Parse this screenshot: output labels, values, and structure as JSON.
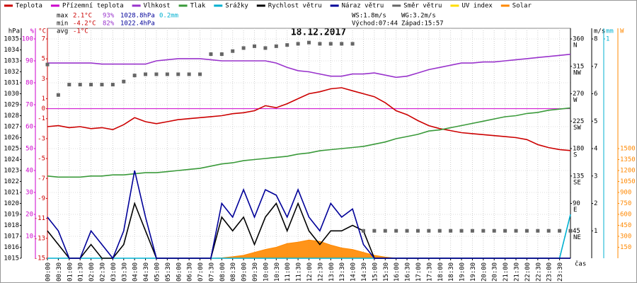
{
  "chart_data": {
    "type": "weather-multi",
    "title": "18.12.2017",
    "x_label": "čas",
    "xlim": [
      0,
      24
    ],
    "grid": true,
    "x": [
      0,
      0.5,
      1,
      1.5,
      2,
      2.5,
      3,
      3.5,
      4,
      4.5,
      5,
      5.5,
      6,
      6.5,
      7,
      7.5,
      8,
      8.5,
      9,
      9.5,
      10,
      10.5,
      11,
      11.5,
      12,
      12.5,
      13,
      13.5,
      14,
      14.5,
      15,
      15.5,
      16,
      16.5,
      17,
      17.5,
      18,
      18.5,
      19,
      19.5,
      20,
      20.5,
      21,
      21.5,
      22,
      22.5,
      23,
      23.5,
      24
    ],
    "xticks": [
      {
        "value": 0,
        "label": "00:00"
      },
      {
        "value": 0.5,
        "label": "00:30"
      },
      {
        "value": 1,
        "label": "01:00"
      },
      {
        "value": 1.5,
        "label": "01:30"
      },
      {
        "value": 2,
        "label": "02:00"
      },
      {
        "value": 2.5,
        "label": "02:30"
      },
      {
        "value": 3,
        "label": "03:00"
      },
      {
        "value": 3.5,
        "label": "03:30"
      },
      {
        "value": 4,
        "label": "04:00"
      },
      {
        "value": 4.5,
        "label": "04:30"
      },
      {
        "value": 5,
        "label": "05:00"
      },
      {
        "value": 5.5,
        "label": "05:30"
      },
      {
        "value": 6,
        "label": "06:00"
      },
      {
        "value": 6.5,
        "label": "06:30"
      },
      {
        "value": 7,
        "label": "07:00"
      },
      {
        "value": 7.5,
        "label": "07:30"
      },
      {
        "value": 8,
        "label": "08:00"
      },
      {
        "value": 8.5,
        "label": "08:30"
      },
      {
        "value": 9,
        "label": "09:00"
      },
      {
        "value": 9.5,
        "label": "09:30"
      },
      {
        "value": 10,
        "label": "10:00"
      },
      {
        "value": 10.5,
        "label": "10:30"
      },
      {
        "value": 11,
        "label": "11:00"
      },
      {
        "value": 11.5,
        "label": "11:30"
      },
      {
        "value": 12,
        "label": "12:00"
      },
      {
        "value": 12.5,
        "label": "12:30"
      },
      {
        "value": 13,
        "label": "13:00"
      },
      {
        "value": 13.5,
        "label": "13:30"
      },
      {
        "value": 14,
        "label": "14:00"
      },
      {
        "value": 14.5,
        "label": "14:30"
      },
      {
        "value": 15,
        "label": "15:00"
      },
      {
        "value": 15.5,
        "label": "15:30"
      },
      {
        "value": 16,
        "label": "16:00"
      },
      {
        "value": 16.5,
        "label": "16:30"
      },
      {
        "value": 17,
        "label": "17:00"
      },
      {
        "value": 17.5,
        "label": "17:30"
      },
      {
        "value": 18,
        "label": "18:00"
      },
      {
        "value": 18.5,
        "label": "18:30"
      },
      {
        "value": 19,
        "label": "19:00"
      },
      {
        "value": 19.5,
        "label": "19:30"
      },
      {
        "value": 20,
        "label": "20:00"
      },
      {
        "value": 20.5,
        "label": "20:30"
      },
      {
        "value": 21,
        "label": "21:00"
      },
      {
        "value": 21.5,
        "label": "21:30"
      },
      {
        "value": 22,
        "label": "22:00"
      },
      {
        "value": 22.5,
        "label": "22:30"
      },
      {
        "value": 23,
        "label": "23:00"
      },
      {
        "value": 23.5,
        "label": "23:30"
      }
    ],
    "axes": [
      {
        "id": "hpa",
        "label": "hPa",
        "side": "left",
        "color": "#000000",
        "lim": [
          1015,
          1035
        ],
        "ticks": [
          1015,
          1016,
          1017,
          1018,
          1019,
          1020,
          1021,
          1022,
          1023,
          1024,
          1025,
          1026,
          1027,
          1028,
          1029,
          1030,
          1031,
          1032,
          1033,
          1034,
          1035
        ]
      },
      {
        "id": "pct",
        "label": "%",
        "side": "left",
        "color": "#cc00cc",
        "lim": [
          0,
          100
        ],
        "ticks": [
          10,
          20,
          30,
          40,
          50,
          60,
          70,
          80,
          90,
          100
        ],
        "grid": true
      },
      {
        "id": "temp",
        "label": "°C",
        "side": "left",
        "color": "#cc0000",
        "lim": [
          -15,
          7
        ],
        "ticks": [
          -15,
          -13,
          -11,
          -9,
          -7,
          -5,
          -3,
          -1,
          0,
          1,
          3,
          5,
          7
        ],
        "zero_line_color": "#cc00cc"
      },
      {
        "id": "dir",
        "label": "",
        "side": "right",
        "color": "#000000",
        "lim": [
          0,
          360
        ],
        "ticks": [
          45,
          90,
          135,
          180,
          225,
          270,
          315,
          360
        ],
        "compass": [
          "NE",
          "E",
          "SE",
          "S",
          "SW",
          "W",
          "NW",
          "N"
        ]
      },
      {
        "id": "ms",
        "label": "m/s",
        "side": "right",
        "color": "#000000",
        "lim": [
          0,
          8
        ],
        "ticks": [
          1,
          2,
          3,
          4,
          5,
          6,
          7,
          8
        ]
      },
      {
        "id": "mm",
        "label": "mm",
        "side": "right",
        "color": "#00b0d0",
        "lim": [
          0,
          1
        ],
        "ticks": [
          1
        ]
      },
      {
        "id": "w",
        "label": "W",
        "side": "right",
        "color": "#ff8800",
        "lim": [
          0,
          3000
        ],
        "ticks": [
          150,
          300,
          450,
          600,
          750,
          900,
          1050,
          1200,
          1350,
          1500
        ]
      }
    ],
    "series": [
      {
        "name": "Teplota",
        "color": "#cc0000",
        "axis": "temp",
        "style": "line",
        "values": [
          -1.8,
          -1.7,
          -1.9,
          -1.8,
          -2.0,
          -1.9,
          -2.1,
          -1.6,
          -0.9,
          -1.3,
          -1.5,
          -1.3,
          -1.1,
          -1.0,
          -0.9,
          -0.8,
          -0.7,
          -0.5,
          -0.4,
          -0.2,
          0.3,
          0.1,
          0.5,
          1.0,
          1.5,
          1.7,
          2.0,
          2.1,
          1.8,
          1.5,
          1.2,
          0.6,
          -0.2,
          -0.6,
          -1.2,
          -1.7,
          -2.0,
          -2.2,
          -2.4,
          -2.5,
          -2.6,
          -2.7,
          -2.8,
          -2.9,
          -3.1,
          -3.6,
          -3.9,
          -4.1,
          -4.2
        ]
      },
      {
        "name": "Přízemní teplota",
        "color": "#cc00cc",
        "axis": "temp",
        "style": "line"
      },
      {
        "name": "Vlhkost",
        "color": "#9933cc",
        "axis": "pct",
        "style": "line",
        "values": [
          89,
          89,
          89,
          89,
          89,
          88.5,
          88.5,
          88.5,
          88.5,
          88.5,
          90,
          90.5,
          91,
          91,
          91,
          90.5,
          90,
          90,
          90,
          90,
          90,
          89,
          87,
          85.5,
          85,
          84,
          83,
          83,
          84,
          84,
          84.5,
          83.5,
          82.5,
          83,
          84.5,
          86,
          87,
          88,
          89,
          89,
          89.5,
          89.5,
          90,
          90.5,
          91,
          91.5,
          92,
          92.5,
          93
        ]
      },
      {
        "name": "Tlak",
        "color": "#3a9a3a",
        "axis": "hpa",
        "style": "line",
        "values": [
          1022.5,
          1022.4,
          1022.4,
          1022.4,
          1022.5,
          1022.5,
          1022.6,
          1022.6,
          1022.7,
          1022.8,
          1022.8,
          1022.9,
          1023.0,
          1023.1,
          1023.2,
          1023.4,
          1023.6,
          1023.7,
          1023.9,
          1024.0,
          1024.1,
          1024.2,
          1024.3,
          1024.5,
          1024.6,
          1024.8,
          1024.9,
          1025.0,
          1025.1,
          1025.2,
          1025.4,
          1025.6,
          1025.9,
          1026.1,
          1026.3,
          1026.6,
          1026.7,
          1026.9,
          1027.1,
          1027.3,
          1027.5,
          1027.7,
          1027.9,
          1028.0,
          1028.2,
          1028.3,
          1028.5,
          1028.6,
          1028.7
        ]
      },
      {
        "name": "Srážky",
        "color": "#00b0d0",
        "axis": "mm",
        "style": "line",
        "values": [
          0,
          0,
          0,
          0,
          0,
          0,
          0,
          0,
          0,
          0,
          0,
          0,
          0,
          0,
          0,
          0,
          0,
          0,
          0,
          0,
          0,
          0,
          0,
          0,
          0,
          0,
          0,
          0,
          0,
          0,
          0,
          0,
          0,
          0,
          0,
          0,
          0,
          0,
          0,
          0,
          0,
          0,
          0,
          0,
          0,
          0,
          0,
          0,
          0.2
        ]
      },
      {
        "name": "Rychlost větru",
        "color": "#000000",
        "axis": "ms",
        "style": "line",
        "values": [
          1,
          0.5,
          0,
          0,
          0.5,
          0,
          0,
          0.5,
          2,
          1,
          0,
          0,
          0,
          0,
          0,
          0,
          1.5,
          1,
          1.5,
          0.5,
          1.5,
          2,
          1,
          2,
          1,
          0.5,
          1,
          1,
          1.2,
          1,
          0,
          0,
          0,
          0,
          0,
          0,
          0,
          0,
          0,
          0,
          0,
          0,
          0,
          0,
          0,
          0,
          0,
          0,
          0
        ]
      },
      {
        "name": "Náraz větru",
        "color": "#000099",
        "axis": "ms",
        "style": "line",
        "values": [
          1.5,
          1,
          0,
          0,
          1,
          0.5,
          0,
          1,
          3.2,
          1.5,
          0,
          0,
          0,
          0,
          0,
          0,
          2,
          1.5,
          2.5,
          1.5,
          2.5,
          2.3,
          1.5,
          2.5,
          1.5,
          1,
          2,
          1.5,
          1.8,
          0.5,
          0,
          0,
          0,
          0,
          0,
          0,
          0,
          0,
          0,
          0,
          0,
          0,
          0,
          0,
          0,
          0,
          0,
          0,
          0
        ]
      },
      {
        "name": "Směr větru",
        "color": "#666666",
        "axis": "dir",
        "style": "points",
        "values": [
          318,
          268,
          285,
          285,
          285,
          285,
          285,
          290,
          300,
          302,
          302,
          302,
          302,
          302,
          302,
          335,
          335,
          340,
          345,
          348,
          345,
          348,
          350,
          352,
          354,
          352,
          352,
          352,
          352,
          45,
          45,
          45,
          45,
          45,
          45,
          45,
          45,
          45,
          45,
          45,
          45,
          45,
          45,
          45,
          45,
          45,
          45,
          45,
          45
        ]
      },
      {
        "name": "UV index",
        "color": "#ffdd00",
        "axis": "w",
        "style": "line"
      },
      {
        "name": "Solar",
        "color": "#ff8800",
        "axis": "w",
        "style": "area",
        "values": [
          0,
          0,
          0,
          0,
          0,
          0,
          0,
          0,
          0,
          0,
          0,
          0,
          0,
          0,
          0,
          0,
          5,
          20,
          40,
          80,
          120,
          150,
          200,
          220,
          250,
          230,
          180,
          140,
          120,
          80,
          40,
          15,
          0,
          0,
          0,
          0,
          0,
          0,
          0,
          0,
          0,
          0,
          0,
          0,
          0,
          0,
          0,
          0,
          0
        ]
      }
    ],
    "stats": [
      [
        "max",
        "2.1°C",
        "93%",
        "1028.8hPa",
        "0.2mm"
      ],
      [
        "min",
        "-4.2°C",
        "82%",
        "1022.4hPa"
      ],
      [
        "avg",
        "-1°C"
      ]
    ],
    "wind_info": [
      [
        "WS:1.8m/s",
        "WG:3.2m/s"
      ],
      [
        "Východ:07:44",
        "Západ:15:57"
      ]
    ]
  }
}
